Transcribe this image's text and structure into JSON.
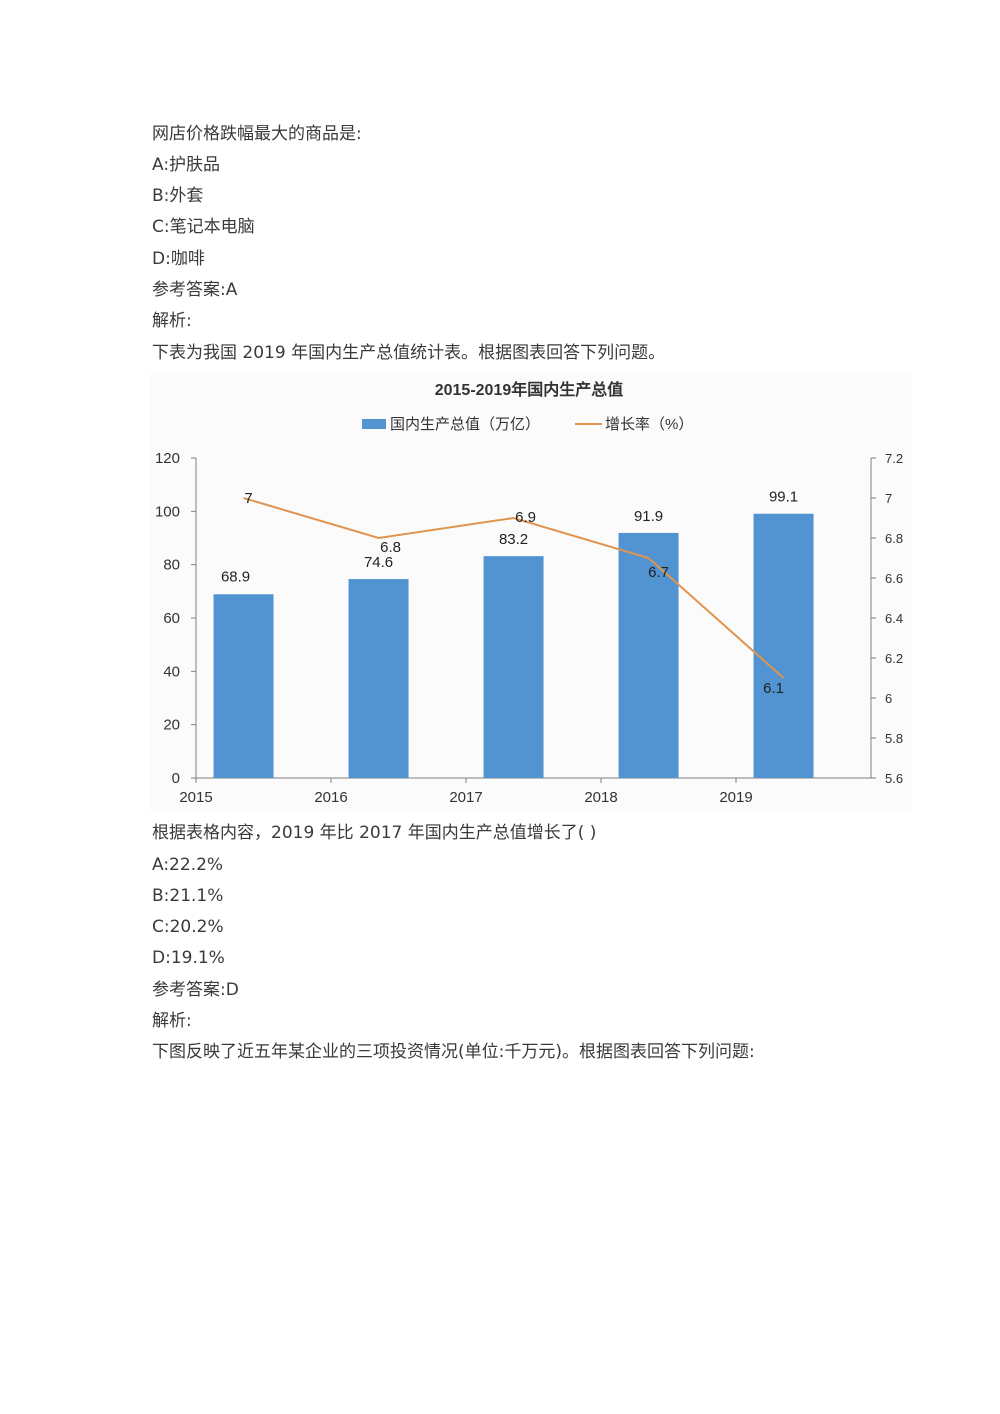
{
  "question1": {
    "stem": "网店价格跌幅最大的商品是:",
    "options": [
      "A:护肤品",
      "B:外套",
      "C:笔记本电脑",
      "D:咖啡"
    ],
    "answer": "参考答案:A",
    "analysis": "解析:"
  },
  "intro2": "下表为我国 2019 年国内生产总值统计表。根据图表回答下列问题。",
  "question2": {
    "stem": "根据表格内容，2019 年比 2017 年国内生产总值增长了( )",
    "options": [
      "A:22.2%",
      "B:21.1%",
      "C:20.2%",
      "D:19.1%"
    ],
    "answer": "参考答案:D",
    "analysis": "解析:"
  },
  "intro3": "下图反映了近五年某企业的三项投资情况(单位:千万元)。根据图表回答下列问题:",
  "chart_data": {
    "type": "bar",
    "title": "2015-2019年国内生产总值",
    "categories": [
      "2015",
      "2016",
      "2017",
      "2018",
      "2019"
    ],
    "series": [
      {
        "name": "国内生产总值（万亿）",
        "type": "bar",
        "axis": "left",
        "values": [
          68.9,
          74.6,
          83.2,
          91.9,
          99.1
        ],
        "labels": [
          "68.9",
          "74.6",
          "83.2",
          "91.9",
          "99.1"
        ]
      },
      {
        "name": "增长率（%）",
        "type": "line",
        "axis": "right",
        "values": [
          7.0,
          6.8,
          6.9,
          6.7,
          6.1
        ],
        "labels": [
          "7",
          "6.8",
          "6.9",
          "6.7",
          "6.1"
        ]
      }
    ],
    "y_left": {
      "min": 0,
      "max": 120,
      "ticks": [
        "0",
        "20",
        "40",
        "60",
        "80",
        "100",
        "120"
      ]
    },
    "y_right": {
      "min": 5.6,
      "max": 7.2,
      "ticks": [
        "5.6",
        "5.8",
        "6",
        "6.2",
        "6.4",
        "6.6",
        "6.8",
        "7",
        "7.2"
      ]
    },
    "grid": false,
    "legend": "top",
    "colors": {
      "bar": "#5294d2",
      "line": "#e0944d"
    }
  }
}
